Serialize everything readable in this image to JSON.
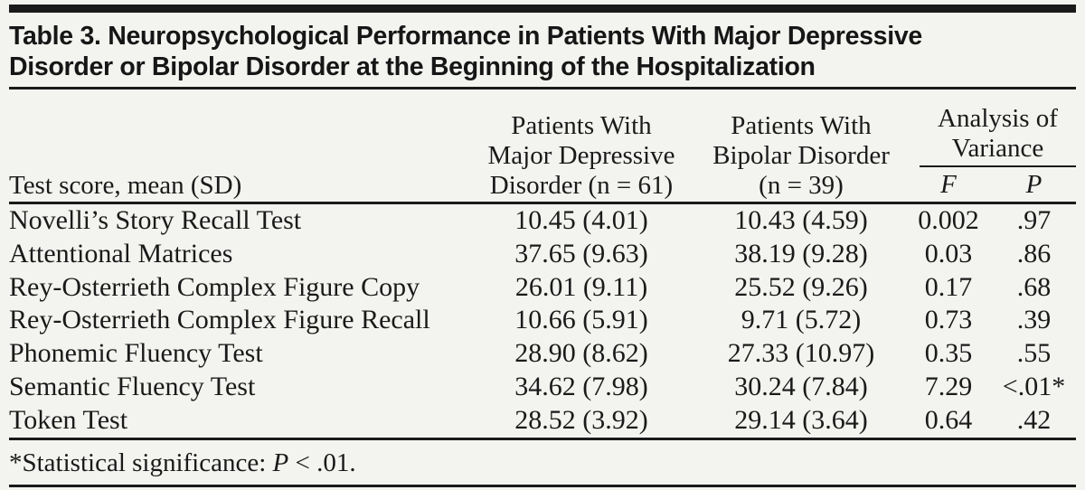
{
  "page": {
    "title_lines": [
      "Table 3. Neuropsychological Performance in Patients With Major Depressive",
      "Disorder or Bipolar Disorder at the Beginning of the Hospitalization"
    ]
  },
  "header": {
    "row_label": "Test score, mean (SD)",
    "mdd_lines": [
      "Patients With",
      "Major Depressive",
      "Disorder (n = 61)"
    ],
    "bd_lines": [
      "Patients With",
      "Bipolar Disorder",
      "(n = 39)"
    ],
    "aov_lines": [
      "Analysis of",
      "Variance"
    ],
    "f_label": "F",
    "p_label": "P"
  },
  "rows": [
    {
      "test": "Novelli’s Story Recall Test",
      "mdd": "10.45 (4.01)",
      "bd": "10.43 (4.59)",
      "f": "0.002",
      "p": ".97"
    },
    {
      "test": "Attentional Matrices",
      "mdd": "37.65 (9.63)",
      "bd": "38.19 (9.28)",
      "f": "0.03",
      "p": ".86"
    },
    {
      "test": "Rey-Osterrieth Complex Figure Copy",
      "mdd": "26.01 (9.11)",
      "bd": "25.52 (9.26)",
      "f": "0.17",
      "p": ".68"
    },
    {
      "test": "Rey-Osterrieth Complex Figure Recall",
      "mdd": "10.66 (5.91)",
      "bd": "9.71 (5.72)",
      "f": "0.73",
      "p": ".39"
    },
    {
      "test": "Phonemic Fluency Test",
      "mdd": "28.90 (8.62)",
      "bd": "27.33 (10.97)",
      "f": "0.35",
      "p": ".55"
    },
    {
      "test": "Semantic Fluency Test",
      "mdd": "34.62 (7.98)",
      "bd": "30.24 (7.84)",
      "f": "7.29",
      "p": "<.01*"
    },
    {
      "test": "Token Test",
      "mdd": "28.52 (3.92)",
      "bd": "29.14 (3.64)",
      "f": "0.64",
      "p": ".42"
    }
  ],
  "footnote": {
    "prefix": "*Statistical significance: ",
    "italic": "P",
    "suffix": " < .01."
  },
  "colors": {
    "ink": "#1a1a1a",
    "background": "#f3f3f0"
  }
}
